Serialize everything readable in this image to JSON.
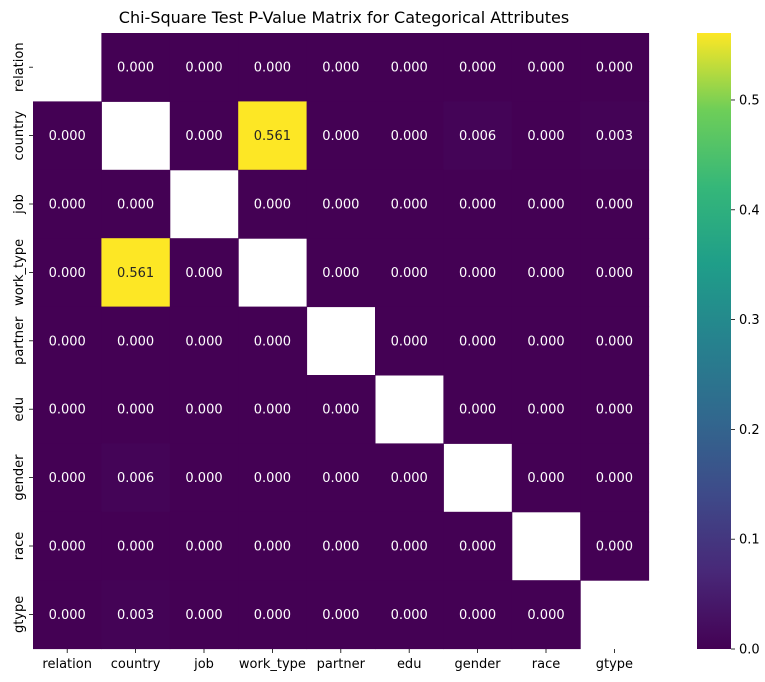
{
  "chart_data": {
    "type": "heatmap",
    "title": "Chi-Square Test P-Value Matrix for Categorical Attributes",
    "xlabel": "",
    "ylabel": "",
    "labels": [
      "relation",
      "country",
      "job",
      "work_type",
      "partner",
      "edu",
      "gender",
      "race",
      "gtype"
    ],
    "matrix": [
      [
        null,
        0.0,
        0.0,
        0.0,
        0.0,
        0.0,
        0.0,
        0.0,
        0.0
      ],
      [
        0.0,
        null,
        0.0,
        0.561,
        0.0,
        0.0,
        0.006,
        0.0,
        0.003
      ],
      [
        0.0,
        0.0,
        null,
        0.0,
        0.0,
        0.0,
        0.0,
        0.0,
        0.0
      ],
      [
        0.0,
        0.561,
        0.0,
        null,
        0.0,
        0.0,
        0.0,
        0.0,
        0.0
      ],
      [
        0.0,
        0.0,
        0.0,
        0.0,
        null,
        0.0,
        0.0,
        0.0,
        0.0
      ],
      [
        0.0,
        0.0,
        0.0,
        0.0,
        0.0,
        null,
        0.0,
        0.0,
        0.0
      ],
      [
        0.0,
        0.006,
        0.0,
        0.0,
        0.0,
        0.0,
        null,
        0.0,
        0.0
      ],
      [
        0.0,
        0.0,
        0.0,
        0.0,
        0.0,
        0.0,
        0.0,
        null,
        0.0
      ],
      [
        0.0,
        0.003,
        0.0,
        0.0,
        0.0,
        0.0,
        0.0,
        0.0,
        null
      ]
    ],
    "colormap": "viridis",
    "color_range": [
      0,
      0.561
    ],
    "colorbar_ticks": [
      0.0,
      0.1,
      0.2,
      0.3,
      0.4,
      0.5
    ],
    "colorbar_tick_labels": [
      "0.0",
      "0.1",
      "0.2",
      "0.3",
      "0.4",
      "0.5"
    ],
    "annotation_format": "3 decimals",
    "diagonal": "masked"
  }
}
